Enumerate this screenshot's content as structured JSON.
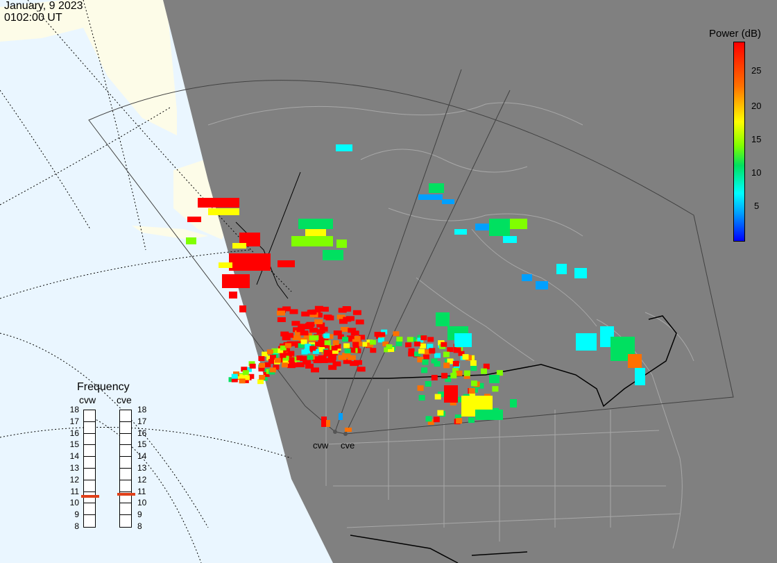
{
  "header": {
    "date": "January, 9 2023",
    "time": "0102:00 UT"
  },
  "colorbar": {
    "title": "Power (dB)",
    "ticks": [
      "25",
      "20",
      "15",
      "10",
      "5"
    ],
    "colors": [
      "#ff0000",
      "#ff7000",
      "#ffff00",
      "#80ff00",
      "#00e060",
      "#00ffff",
      "#00a0ff",
      "#0000ff"
    ]
  },
  "frequency_panel": {
    "title": "Frequency",
    "sites": [
      {
        "name": "cvw",
        "value_mhz": 10.6
      },
      {
        "name": "cve",
        "value_mhz": 10.8
      }
    ],
    "scale": [
      "18",
      "17",
      "16",
      "15",
      "14",
      "13",
      "12",
      "11",
      "10",
      "9",
      "8"
    ],
    "marker_color": "#e0401a"
  },
  "radars": [
    {
      "label": "cvw"
    },
    {
      "label": "cve"
    }
  ],
  "map": {
    "ocean_color": "#eaf6ff",
    "land_day_color": "#fdfce8",
    "night_color": "#808080",
    "boundary_color": "#a8a8a8"
  }
}
